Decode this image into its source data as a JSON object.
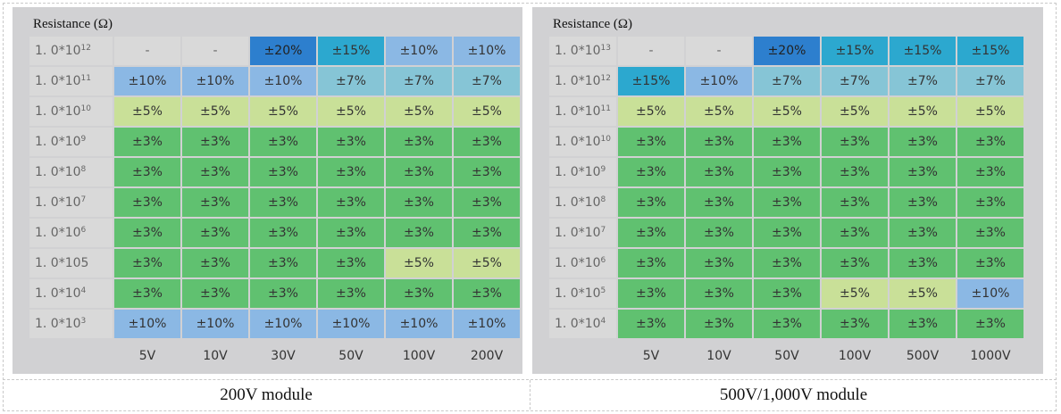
{
  "chart_data": [
    {
      "type": "heatmap",
      "title": "Resistance (Ω)",
      "caption": "200V module",
      "columns": [
        "5V",
        "10V",
        "30V",
        "50V",
        "100V",
        "200V"
      ],
      "rows": [
        {
          "base": "1. 0*10",
          "exp": "12",
          "cells": [
            "-",
            "-",
            "±20%",
            "±15%",
            "±10%",
            "±10%"
          ]
        },
        {
          "base": "1. 0*10",
          "exp": "11",
          "cells": [
            "±10%",
            "±10%",
            "±10%",
            "±7%",
            "±7%",
            "±7%"
          ]
        },
        {
          "base": "1. 0*10",
          "exp": "10",
          "cells": [
            "±5%",
            "±5%",
            "±5%",
            "±5%",
            "±5%",
            "±5%"
          ]
        },
        {
          "base": "1. 0*10",
          "exp": "9",
          "cells": [
            "±3%",
            "±3%",
            "±3%",
            "±3%",
            "±3%",
            "±3%"
          ]
        },
        {
          "base": "1. 0*10",
          "exp": "8",
          "cells": [
            "±3%",
            "±3%",
            "±3%",
            "±3%",
            "±3%",
            "±3%"
          ]
        },
        {
          "base": "1. 0*10",
          "exp": "7",
          "cells": [
            "±3%",
            "±3%",
            "±3%",
            "±3%",
            "±3%",
            "±3%"
          ]
        },
        {
          "base": "1. 0*10",
          "exp": "6",
          "cells": [
            "±3%",
            "±3%",
            "±3%",
            "±3%",
            "±3%",
            "±3%"
          ]
        },
        {
          "base": "1. 0*105",
          "exp": "",
          "cells": [
            "±3%",
            "±3%",
            "±3%",
            "±3%",
            "±5%",
            "±5%"
          ]
        },
        {
          "base": "1. 0*10",
          "exp": "4",
          "cells": [
            "±3%",
            "±3%",
            "±3%",
            "±3%",
            "±3%",
            "±3%"
          ]
        },
        {
          "base": "1. 0*10",
          "exp": "3",
          "cells": [
            "±10%",
            "±10%",
            "±10%",
            "±10%",
            "±10%",
            "±10%"
          ]
        }
      ]
    },
    {
      "type": "heatmap",
      "title": "Resistance (Ω)",
      "caption": "500V/1,000V module",
      "columns": [
        "5V",
        "10V",
        "50V",
        "100V",
        "500V",
        "1000V"
      ],
      "rows": [
        {
          "base": "1. 0*10",
          "exp": "13",
          "cells": [
            "-",
            "-",
            "±20%",
            "±15%",
            "±15%",
            "±15%"
          ]
        },
        {
          "base": "1. 0*10",
          "exp": "12",
          "cells": [
            "±15%",
            "±10%",
            "±7%",
            "±7%",
            "±7%",
            "±7%"
          ]
        },
        {
          "base": "1. 0*10",
          "exp": "11",
          "cells": [
            "±5%",
            "±5%",
            "±5%",
            "±5%",
            "±5%",
            "±5%"
          ]
        },
        {
          "base": "1. 0*10",
          "exp": "10",
          "cells": [
            "±3%",
            "±3%",
            "±3%",
            "±3%",
            "±3%",
            "±3%"
          ]
        },
        {
          "base": "1. 0*10",
          "exp": "9",
          "cells": [
            "±3%",
            "±3%",
            "±3%",
            "±3%",
            "±3%",
            "±3%"
          ]
        },
        {
          "base": "1. 0*10",
          "exp": "8",
          "cells": [
            "±3%",
            "±3%",
            "±3%",
            "±3%",
            "±3%",
            "±3%"
          ]
        },
        {
          "base": "1. 0*10",
          "exp": "7",
          "cells": [
            "±3%",
            "±3%",
            "±3%",
            "±3%",
            "±3%",
            "±3%"
          ]
        },
        {
          "base": "1. 0*10",
          "exp": "6",
          "cells": [
            "±3%",
            "±3%",
            "±3%",
            "±3%",
            "±3%",
            "±3%"
          ]
        },
        {
          "base": "1. 0*10",
          "exp": "5",
          "cells": [
            "±3%",
            "±3%",
            "±3%",
            "±5%",
            "±5%",
            "±10%"
          ]
        },
        {
          "base": "1. 0*10",
          "exp": "4",
          "cells": [
            "±3%",
            "±3%",
            "±3%",
            "±3%",
            "±3%",
            "±3%"
          ]
        }
      ]
    }
  ],
  "colors": {
    "panel_bg": "#d1d1d3",
    "row_label_bg": "#d9d9d9",
    "green": "#60c170",
    "light_green": "#c9e098",
    "light_blue": "#8bb8e4",
    "teal": "#86c5d6",
    "cyan": "#2ca8cf",
    "dark_blue": "#2d7fce"
  },
  "cell_color_map": {
    "±3%": "c-g",
    "±5%": "c-lg",
    "±7%": "c-t",
    "±10%": "c-b",
    "±15%": "c-cy",
    "±20%": "c-db",
    "-": "c-na"
  },
  "cell_color_overrides": {
    "1": {
      "±15%": "c-cy"
    }
  }
}
